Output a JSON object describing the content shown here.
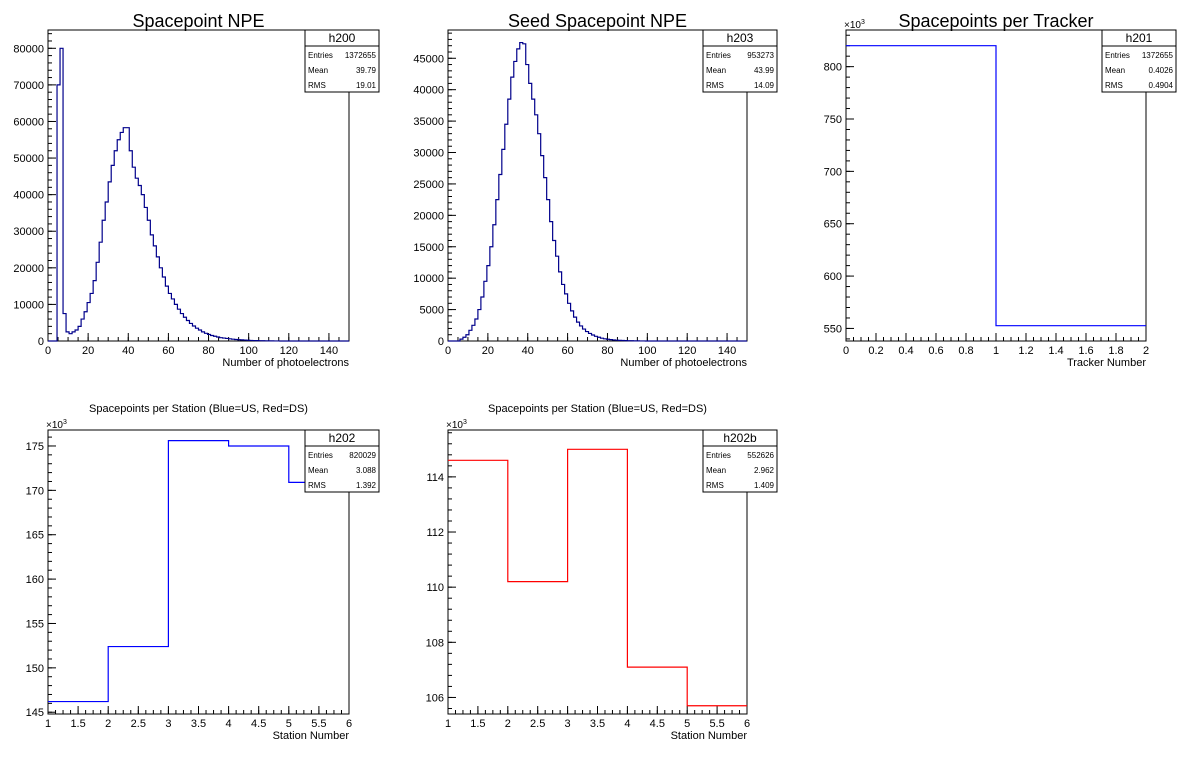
{
  "chart_data": [
    {
      "type": "histogram",
      "title": "Spacepoint NPE",
      "xlabel": "Number of photoelectrons",
      "ylabel": "",
      "xlim": [
        0,
        150
      ],
      "ylim": [
        0,
        85000
      ],
      "y_exponent": "",
      "xticks": [
        "0",
        "20",
        "40",
        "60",
        "80",
        "100",
        "120",
        "140"
      ],
      "yticks": [
        "0",
        "10000",
        "20000",
        "30000",
        "40000",
        "50000",
        "60000",
        "70000",
        "80000"
      ],
      "line_color": "#00008b",
      "stats": {
        "name": "h200",
        "entries": "1372655",
        "mean": "39.79",
        "rms": "19.01"
      },
      "bin_width": 1.5,
      "values": [
        0,
        0,
        0,
        70000,
        80000,
        7500,
        2500,
        2000,
        2500,
        3000,
        4000,
        6000,
        8000,
        10500,
        13000,
        16500,
        21500,
        27000,
        33000,
        38000,
        43500,
        48000,
        52000,
        55000,
        57000,
        58300,
        58300,
        52000,
        47500,
        44500,
        42500,
        40000,
        36500,
        33000,
        29000,
        26000,
        23000,
        20000,
        17500,
        15000,
        13000,
        11500,
        10000,
        8700,
        7500,
        6500,
        5600,
        4800,
        4100,
        3500,
        3000,
        2500,
        2100,
        1800,
        1500,
        1300,
        1100,
        900,
        800,
        700,
        600,
        500,
        400,
        350,
        300,
        250,
        200,
        150,
        120,
        100,
        80,
        60,
        50,
        40,
        30,
        20,
        15,
        10,
        5,
        3,
        2,
        1,
        0,
        0,
        0,
        0,
        0,
        0,
        0,
        0,
        0,
        0,
        0,
        0,
        0,
        0,
        0,
        0,
        0,
        0
      ]
    },
    {
      "type": "histogram",
      "title": "Seed Spacepoint NPE",
      "xlabel": "Number of photoelectrons",
      "ylabel": "",
      "xlim": [
        0,
        150
      ],
      "ylim": [
        0,
        49500
      ],
      "y_exponent": "",
      "xticks": [
        "0",
        "20",
        "40",
        "60",
        "80",
        "100",
        "120",
        "140"
      ],
      "yticks": [
        "0",
        "5000",
        "10000",
        "15000",
        "20000",
        "25000",
        "30000",
        "35000",
        "40000",
        "45000"
      ],
      "line_color": "#00008b",
      "stats": {
        "name": "h203",
        "entries": "953273",
        "mean": "43.99",
        "rms": "14.09"
      },
      "bin_width": 1.5,
      "values": [
        0,
        0,
        0,
        0,
        300,
        600,
        1000,
        1700,
        2500,
        3500,
        5000,
        7000,
        9500,
        12000,
        15000,
        18500,
        22500,
        26500,
        30500,
        34500,
        38500,
        42000,
        44500,
        46500,
        47500,
        47300,
        44000,
        41000,
        38500,
        36000,
        33000,
        29500,
        26000,
        22500,
        19000,
        16000,
        13500,
        11000,
        9000,
        7500,
        6000,
        4800,
        3800,
        3000,
        2400,
        1900,
        1500,
        1200,
        950,
        750,
        600,
        450,
        350,
        280,
        220,
        170,
        130,
        100,
        80,
        60,
        45,
        35,
        25,
        18,
        12,
        8,
        5,
        3,
        2,
        1,
        0,
        0,
        0,
        0,
        0,
        0,
        0,
        0,
        0,
        0,
        0,
        0,
        0,
        0,
        0,
        0,
        0,
        0,
        0,
        0,
        0,
        0,
        0,
        0,
        0,
        0,
        0,
        0,
        0,
        0
      ]
    },
    {
      "type": "histogram",
      "title": "Spacepoints per Tracker",
      "xlabel": "Tracker Number",
      "ylabel": "",
      "xlim": [
        0,
        2
      ],
      "ylim": [
        538,
        835
      ],
      "y_exponent": "×10³",
      "xticks": [
        "0",
        "0.2",
        "0.4",
        "0.6",
        "0.8",
        "1",
        "1.2",
        "1.4",
        "1.6",
        "1.8",
        "2"
      ],
      "yticks": [
        "550",
        "600",
        "650",
        "700",
        "750",
        "800"
      ],
      "line_color": "#0000ff",
      "stats": {
        "name": "h201",
        "entries": "1372655",
        "mean": "0.4026",
        "rms": "0.4904"
      },
      "bin_width": 1,
      "values": [
        820.0,
        552.6
      ]
    },
    {
      "type": "histogram",
      "title": "Spacepoints per Station (Blue=US, Red=DS)",
      "xlabel": "Station Number",
      "ylabel": "",
      "xlim": [
        1,
        6
      ],
      "ylim": [
        144.8,
        176.8
      ],
      "y_exponent": "×10³",
      "xticks": [
        "1",
        "1.5",
        "2",
        "2.5",
        "3",
        "3.5",
        "4",
        "4.5",
        "5",
        "5.5",
        "6"
      ],
      "yticks": [
        "145",
        "150",
        "155",
        "160",
        "165",
        "170",
        "175"
      ],
      "line_color": "#0000ff",
      "stats": {
        "name": "h202",
        "entries": "820029",
        "mean": "3.088",
        "rms": "1.392"
      },
      "bin_width": 1,
      "values": [
        146.2,
        152.4,
        175.6,
        175.0,
        170.9
      ]
    },
    {
      "type": "histogram",
      "title": "Spacepoints per Station (Blue=US, Red=DS)",
      "xlabel": "Station Number",
      "ylabel": "",
      "xlim": [
        1,
        6
      ],
      "ylim": [
        105.4,
        115.7
      ],
      "y_exponent": "×10³",
      "xticks": [
        "1",
        "1.5",
        "2",
        "2.5",
        "3",
        "3.5",
        "4",
        "4.5",
        "5",
        "5.5",
        "6"
      ],
      "yticks": [
        "106",
        "108",
        "110",
        "112",
        "114"
      ],
      "line_color": "#ff0000",
      "stats": {
        "name": "h202b",
        "entries": "552626",
        "mean": "2.962",
        "rms": "1.409"
      },
      "bin_width": 1,
      "values": [
        114.6,
        110.2,
        115.0,
        107.1,
        105.7
      ]
    }
  ],
  "stats_labels": {
    "entries": "Entries",
    "mean": "Mean",
    "rms": "RMS"
  }
}
